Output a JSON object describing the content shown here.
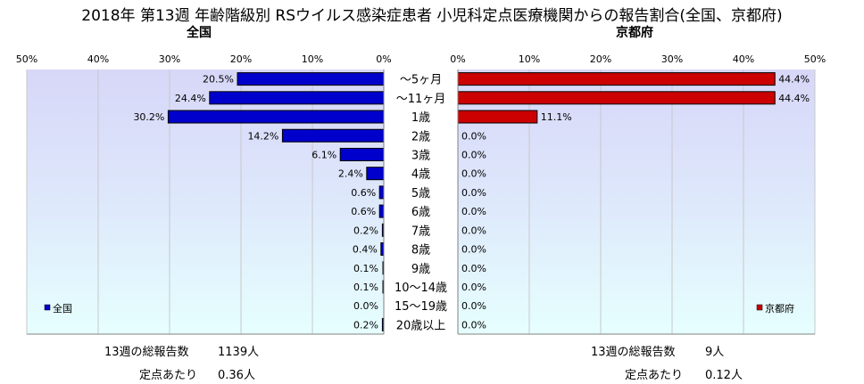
{
  "title": "2018年 第13週 年齢階級別 RSウイルス感染症患者 小児科定点医療機関からの報告割合(全国、京都府)",
  "left": {
    "subtitle": "全国",
    "legend": "全国",
    "total_label": "13週の総報告数",
    "total_value": "1139人",
    "per_label": "定点あたり",
    "per_value": "0.36人"
  },
  "right": {
    "subtitle": "京都府",
    "legend": "京都府",
    "total_label": "13週の総報告数",
    "total_value": "9人",
    "per_label": "定点あたり",
    "per_value": "0.12人"
  },
  "colors": {
    "national": "#0000cc",
    "kyoto": "#cc0000",
    "axis": "#808080"
  },
  "chart_data": [
    {
      "type": "bar",
      "orientation": "horizontal",
      "direction": "right-to-left",
      "series": [
        {
          "name": "全国",
          "values": [
            20.5,
            24.4,
            30.2,
            14.2,
            6.1,
            2.4,
            0.6,
            0.6,
            0.2,
            0.4,
            0.1,
            0.1,
            0.0,
            0.2
          ]
        }
      ],
      "data_labels": [
        "20.5%",
        "24.4%",
        "30.2%",
        "14.2%",
        "6.1%",
        "2.4%",
        "0.6%",
        "0.6%",
        "0.2%",
        "0.4%",
        "0.1%",
        "0.1%",
        "0.0%",
        "0.2%"
      ],
      "categories": [
        "〜5ヶ月",
        "〜11ヶ月",
        "1歳",
        "2歳",
        "3歳",
        "4歳",
        "5歳",
        "6歳",
        "7歳",
        "8歳",
        "9歳",
        "10〜14歳",
        "15〜19歳",
        "20歳以上"
      ],
      "xlim": [
        0,
        50
      ],
      "ticks": [
        "50%",
        "40%",
        "30%",
        "20%",
        "10%",
        "0%"
      ],
      "legend_position": "bottom-left",
      "grid": true
    },
    {
      "type": "bar",
      "orientation": "horizontal",
      "direction": "left-to-right",
      "series": [
        {
          "name": "京都府",
          "values": [
            44.4,
            44.4,
            11.1,
            0.0,
            0.0,
            0.0,
            0.0,
            0.0,
            0.0,
            0.0,
            0.0,
            0.0,
            0.0,
            0.0
          ]
        }
      ],
      "data_labels": [
        "44.4%",
        "44.4%",
        "11.1%",
        "0.0%",
        "0.0%",
        "0.0%",
        "0.0%",
        "0.0%",
        "0.0%",
        "0.0%",
        "0.0%",
        "0.0%",
        "0.0%",
        "0.0%"
      ],
      "categories": [
        "〜5ヶ月",
        "〜11ヶ月",
        "1歳",
        "2歳",
        "3歳",
        "4歳",
        "5歳",
        "6歳",
        "7歳",
        "8歳",
        "9歳",
        "10〜14歳",
        "15〜19歳",
        "20歳以上"
      ],
      "xlim": [
        0,
        50
      ],
      "ticks": [
        "0%",
        "10%",
        "20%",
        "30%",
        "40%",
        "50%"
      ],
      "legend_position": "bottom-right",
      "grid": true
    }
  ]
}
